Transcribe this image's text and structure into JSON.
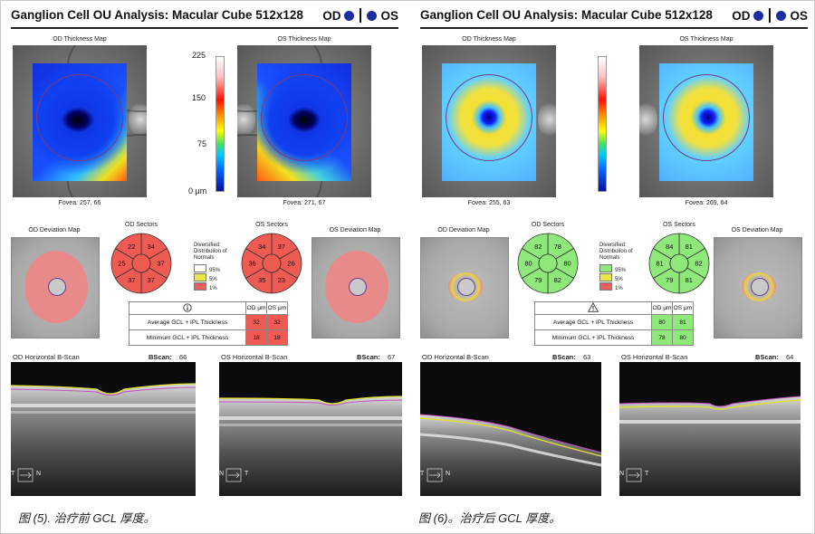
{
  "figures": [
    {
      "title": "Ganglion Cell OU Analysis: Macular Cube 512x128",
      "eye_left": "OD",
      "eye_right": "OS",
      "od_thickness_label": "OD Thickness Map",
      "os_thickness_label": "OS Thickness Map",
      "od_fovea": "Fovea: 257, 66",
      "os_fovea": "Fovea: 271, 67",
      "scale": {
        "max": "225",
        "mid": "150",
        "low": "75",
        "zero": "0 μm"
      },
      "od_deviation_label": "OD Deviation Map",
      "os_deviation_label": "OS Deviation Map",
      "od_sectors_label": "OD Sectors",
      "os_sectors_label": "OS Sectors",
      "od_sectors": [
        "34",
        "37",
        "37",
        "37",
        "25",
        "22"
      ],
      "os_sectors": [
        "37",
        "26",
        "23",
        "35",
        "36",
        "34"
      ],
      "sector_color": "#ef5a52",
      "distribution_title": "Diversified: Distribution of Normals",
      "dist_95": "95%",
      "dist_5": "5%",
      "dist_1": "1%",
      "table": {
        "od_col": "OD μm",
        "os_col": "OS μm",
        "row1_label": "Average GCL + IPL Thickness",
        "row1_od": "32",
        "row1_os": "32",
        "row2_label": "Minimum GCL + IPL Thickness",
        "row2_od": "18",
        "row2_os": "18",
        "cell_color": "#ef5a52"
      },
      "od_bscan_label": "OD Horizontal B-Scan",
      "os_bscan_label": "OS Horizontal B-Scan",
      "bscan_word": "BScan:",
      "od_bscan_num": "66",
      "os_bscan_num": "67",
      "od_axis_a": "T",
      "od_axis_b": "N",
      "os_axis_a": "N",
      "os_axis_b": "T",
      "caption": "图 (5). 治疗前 GCL 厚度。"
    },
    {
      "title": "Ganglion Cell OU Analysis: Macular Cube 512x128",
      "eye_left": "OD",
      "eye_right": "OS",
      "od_thickness_label": "OD Thickness Map",
      "os_thickness_label": "OS Thickness Map",
      "od_fovea": "Fovea: 255, 63",
      "os_fovea": "Fovea: 269, 64",
      "od_deviation_label": "OD Deviation Map",
      "os_deviation_label": "OS Deviation Map",
      "od_sectors_label": "OD Sectors",
      "os_sectors_label": "OS Sectors",
      "od_sectors": [
        "78",
        "80",
        "82",
        "79",
        "80",
        "82"
      ],
      "os_sectors": [
        "81",
        "82",
        "81",
        "79",
        "81",
        "84"
      ],
      "sector_color": "#8fe87a",
      "distribution_title": "Diversified: Distribution of Normals",
      "dist_95": "95%",
      "dist_5": "5%",
      "dist_1": "1%",
      "table": {
        "od_col": "OD μm",
        "os_col": "OS μm",
        "row1_label": "Average GCL + IPL Thickness",
        "row1_od": "80",
        "row1_os": "81",
        "row2_label": "Minimum GCL + IPL Thickness",
        "row2_od": "78",
        "row2_os": "80",
        "cell_color": "#8fe87a"
      },
      "od_bscan_label": "OD Horizontal B-Scan",
      "os_bscan_label": "OS Horizontal B-Scan",
      "bscan_word": "BScan:",
      "od_bscan_num": "63",
      "os_bscan_num": "64",
      "od_axis_a": "T",
      "od_axis_b": "N",
      "os_axis_a": "N",
      "os_axis_b": "T",
      "caption": "图 (6)。治疗后 GCL 厚度。"
    }
  ]
}
